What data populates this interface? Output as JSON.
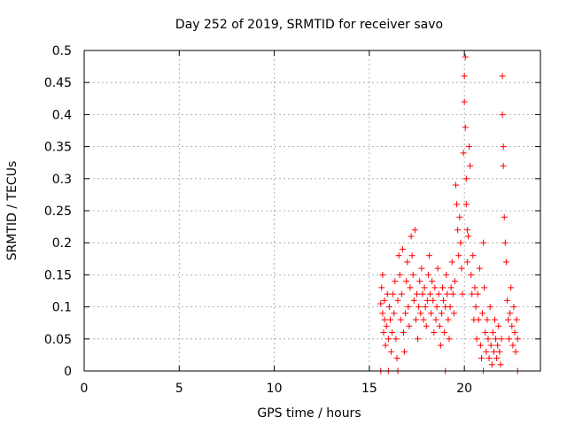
{
  "chart_data": {
    "type": "scatter",
    "title": "Day 252 of 2019, SRMTID for receiver savo",
    "xlabel": "GPS time / hours",
    "ylabel": "SRMTID / TECUs",
    "xlim": [
      0,
      24
    ],
    "ylim": [
      0,
      0.5
    ],
    "x_ticks": [
      "0",
      "5",
      "10",
      "15",
      "20"
    ],
    "y_ticks": [
      "0",
      "0.05",
      "0.1",
      "0.15",
      "0.2",
      "0.25",
      "0.3",
      "0.35",
      "0.4",
      "0.45",
      "0.5"
    ],
    "x_tick_values": [
      0,
      5,
      10,
      15,
      20
    ],
    "y_tick_values": [
      0,
      0.05,
      0.1,
      0.15,
      0.2,
      0.25,
      0.3,
      0.35,
      0.4,
      0.45,
      0.5
    ],
    "grid": true,
    "marker": "+",
    "color": "#ff0000",
    "series": [
      {
        "name": "SRMTID",
        "points": [
          [
            15.6,
            0.0
          ],
          [
            15.6,
            0.105
          ],
          [
            15.65,
            0.13
          ],
          [
            15.7,
            0.15
          ],
          [
            15.7,
            0.09
          ],
          [
            15.75,
            0.06
          ],
          [
            15.8,
            0.08
          ],
          [
            15.8,
            0.11
          ],
          [
            15.85,
            0.04
          ],
          [
            15.9,
            0.07
          ],
          [
            15.95,
            0.12
          ],
          [
            16.0,
            0.05
          ],
          [
            16.0,
            0.0
          ],
          [
            16.05,
            0.1
          ],
          [
            16.1,
            0.08
          ],
          [
            16.15,
            0.03
          ],
          [
            16.2,
            0.06
          ],
          [
            16.25,
            0.12
          ],
          [
            16.3,
            0.09
          ],
          [
            16.35,
            0.14
          ],
          [
            16.4,
            0.05
          ],
          [
            16.45,
            0.02
          ],
          [
            16.5,
            0.0
          ],
          [
            16.5,
            0.11
          ],
          [
            16.55,
            0.18
          ],
          [
            16.6,
            0.15
          ],
          [
            16.65,
            0.08
          ],
          [
            16.7,
            0.12
          ],
          [
            16.75,
            0.19
          ],
          [
            16.8,
            0.06
          ],
          [
            16.85,
            0.03
          ],
          [
            16.9,
            0.09
          ],
          [
            16.95,
            0.14
          ],
          [
            17.0,
            0.17
          ],
          [
            17.05,
            0.1
          ],
          [
            17.1,
            0.07
          ],
          [
            17.15,
            0.13
          ],
          [
            17.2,
            0.21
          ],
          [
            17.25,
            0.18
          ],
          [
            17.3,
            0.15
          ],
          [
            17.35,
            0.11
          ],
          [
            17.4,
            0.22
          ],
          [
            17.45,
            0.08
          ],
          [
            17.5,
            0.12
          ],
          [
            17.55,
            0.05
          ],
          [
            17.6,
            0.1
          ],
          [
            17.65,
            0.14
          ],
          [
            17.7,
            0.09
          ],
          [
            17.75,
            0.16
          ],
          [
            17.8,
            0.12
          ],
          [
            17.85,
            0.08
          ],
          [
            17.9,
            0.13
          ],
          [
            17.95,
            0.1
          ],
          [
            18.0,
            0.07
          ],
          [
            18.05,
            0.11
          ],
          [
            18.1,
            0.15
          ],
          [
            18.15,
            0.18
          ],
          [
            18.2,
            0.12
          ],
          [
            18.25,
            0.09
          ],
          [
            18.3,
            0.14
          ],
          [
            18.35,
            0.11
          ],
          [
            18.4,
            0.06
          ],
          [
            18.45,
            0.13
          ],
          [
            18.5,
            0.08
          ],
          [
            18.55,
            0.1
          ],
          [
            18.6,
            0.16
          ],
          [
            18.65,
            0.12
          ],
          [
            18.7,
            0.07
          ],
          [
            18.75,
            0.04
          ],
          [
            18.8,
            0.09
          ],
          [
            18.85,
            0.13
          ],
          [
            18.9,
            0.11
          ],
          [
            18.95,
            0.06
          ],
          [
            19.0,
            0.0
          ],
          [
            19.0,
            0.1
          ],
          [
            19.05,
            0.15
          ],
          [
            19.1,
            0.12
          ],
          [
            19.15,
            0.08
          ],
          [
            19.2,
            0.05
          ],
          [
            19.25,
            0.1
          ],
          [
            19.3,
            0.13
          ],
          [
            19.35,
            0.17
          ],
          [
            19.4,
            0.12
          ],
          [
            19.45,
            0.09
          ],
          [
            19.5,
            0.14
          ],
          [
            19.55,
            0.29
          ],
          [
            19.6,
            0.26
          ],
          [
            19.65,
            0.22
          ],
          [
            19.7,
            0.18
          ],
          [
            19.75,
            0.24
          ],
          [
            19.8,
            0.2
          ],
          [
            19.85,
            0.16
          ],
          [
            19.9,
            0.12
          ],
          [
            19.95,
            0.34
          ],
          [
            20.0,
            0.42
          ],
          [
            20.0,
            0.46
          ],
          [
            20.05,
            0.49
          ],
          [
            20.05,
            0.38
          ],
          [
            20.1,
            0.3
          ],
          [
            20.1,
            0.26
          ],
          [
            20.15,
            0.22
          ],
          [
            20.15,
            0.17
          ],
          [
            20.2,
            0.21
          ],
          [
            20.25,
            0.35
          ],
          [
            20.3,
            0.32
          ],
          [
            20.35,
            0.15
          ],
          [
            20.4,
            0.12
          ],
          [
            20.45,
            0.18
          ],
          [
            20.5,
            0.08
          ],
          [
            20.55,
            0.13
          ],
          [
            20.6,
            0.1
          ],
          [
            20.65,
            0.05
          ],
          [
            20.7,
            0.12
          ],
          [
            20.75,
            0.08
          ],
          [
            20.8,
            0.16
          ],
          [
            20.85,
            0.04
          ],
          [
            20.9,
            0.02
          ],
          [
            20.95,
            0.09
          ],
          [
            21.0,
            0.2
          ],
          [
            21.0,
            0.0
          ],
          [
            21.05,
            0.13
          ],
          [
            21.1,
            0.06
          ],
          [
            21.15,
            0.03
          ],
          [
            21.2,
            0.08
          ],
          [
            21.25,
            0.05
          ],
          [
            21.3,
            0.02
          ],
          [
            21.35,
            0.1
          ],
          [
            21.4,
            0.04
          ],
          [
            21.45,
            0.01
          ],
          [
            21.5,
            0.06
          ],
          [
            21.55,
            0.03
          ],
          [
            21.6,
            0.08
          ],
          [
            21.65,
            0.05
          ],
          [
            21.7,
            0.02
          ],
          [
            21.75,
            0.04
          ],
          [
            21.8,
            0.07
          ],
          [
            21.85,
            0.03
          ],
          [
            21.9,
            0.01
          ],
          [
            21.95,
            0.05
          ],
          [
            22.0,
            0.46
          ],
          [
            22.0,
            0.4
          ],
          [
            22.05,
            0.35
          ],
          [
            22.05,
            0.32
          ],
          [
            22.1,
            0.24
          ],
          [
            22.15,
            0.2
          ],
          [
            22.2,
            0.17
          ],
          [
            22.25,
            0.11
          ],
          [
            22.3,
            0.08
          ],
          [
            22.35,
            0.05
          ],
          [
            22.4,
            0.09
          ],
          [
            22.45,
            0.13
          ],
          [
            22.5,
            0.07
          ],
          [
            22.55,
            0.04
          ],
          [
            22.6,
            0.1
          ],
          [
            22.65,
            0.06
          ],
          [
            22.7,
            0.03
          ],
          [
            22.75,
            0.08
          ],
          [
            22.8,
            0.05
          ],
          [
            22.8,
            0.0
          ]
        ]
      }
    ]
  }
}
